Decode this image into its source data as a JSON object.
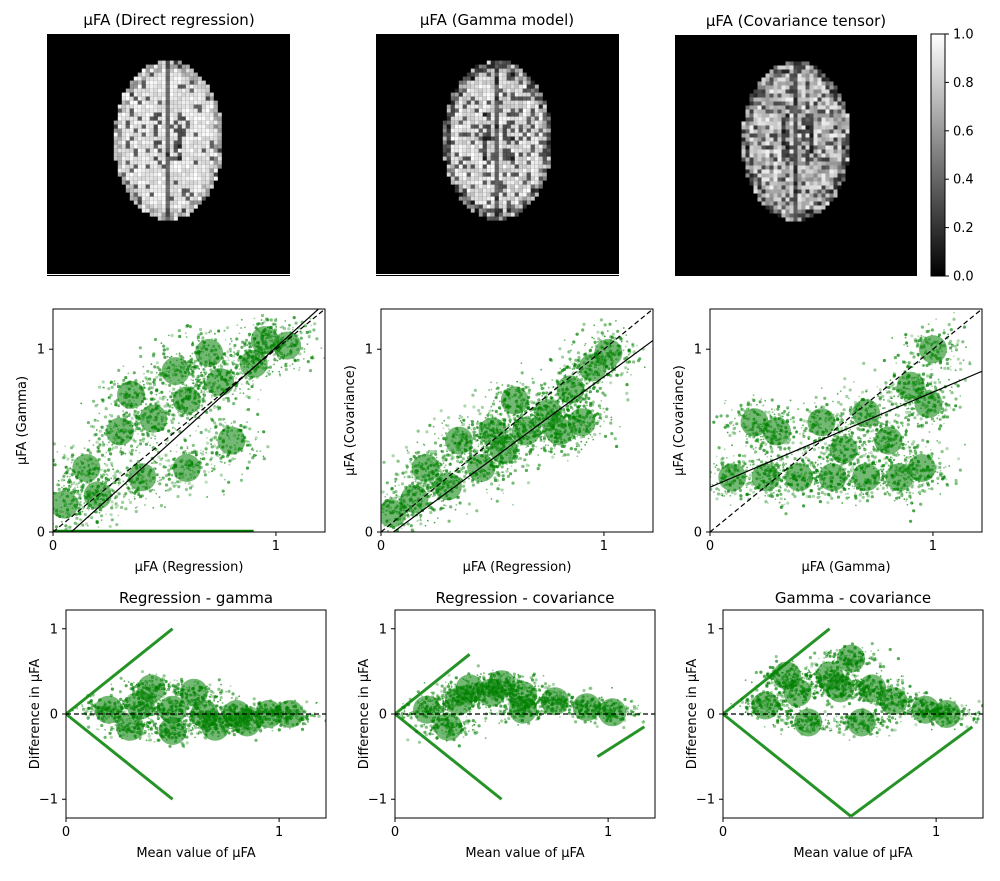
{
  "chart_data": [
    {
      "type": "image",
      "title": "μFA (Direct regression)",
      "image": {
        "kind": "brain",
        "style": "direct",
        "colormap": "gray",
        "range": [
          0,
          1
        ]
      }
    },
    {
      "type": "image",
      "title": "μFA (Gamma model)",
      "image": {
        "kind": "brain",
        "style": "gamma",
        "colormap": "gray",
        "range": [
          0,
          1
        ]
      }
    },
    {
      "type": "image",
      "title": "μFA (Covariance tensor)",
      "image": {
        "kind": "brain",
        "style": "covariance",
        "colormap": "gray",
        "range": [
          0,
          1
        ]
      }
    },
    {
      "type": "colorbar",
      "colormap": "gray",
      "range": [
        0,
        1
      ],
      "ticks": [
        0.0,
        0.2,
        0.4,
        0.6,
        0.8,
        1.0
      ],
      "tick_labels": [
        "0.0",
        "0.2",
        "0.4",
        "0.6",
        "0.8",
        "1.0"
      ]
    },
    {
      "type": "scatter",
      "title": "",
      "xlabel": "μFA (Regression)",
      "ylabel": "μFA (Gamma)",
      "xlim": [
        0,
        1.22
      ],
      "ylim": [
        0,
        1.22
      ],
      "xticks": [
        0,
        1
      ],
      "yticks": [
        0,
        1
      ],
      "point_color": "#008000",
      "identity_line": {
        "style": "dashed",
        "color": "#000000"
      },
      "fit_line": {
        "slope": 1.1,
        "intercept": -0.09,
        "color": "#000000"
      },
      "cloud": {
        "points": [
          [
            0.05,
            0.15
          ],
          [
            0.15,
            0.35
          ],
          [
            0.3,
            0.55
          ],
          [
            0.45,
            0.62
          ],
          [
            0.6,
            0.72
          ],
          [
            0.75,
            0.82
          ],
          [
            0.9,
            0.92
          ],
          [
            1.05,
            1.02
          ],
          [
            0.8,
            0.5
          ],
          [
            0.6,
            0.35
          ],
          [
            0.4,
            0.3
          ],
          [
            0.2,
            0.2
          ],
          [
            0.35,
            0.75
          ],
          [
            0.55,
            0.88
          ],
          [
            0.7,
            0.98
          ],
          [
            0.95,
            1.05
          ]
        ],
        "floor_row": {
          "y": 0.0,
          "x_range": [
            0,
            0.9
          ]
        }
      }
    },
    {
      "type": "scatter",
      "title": "",
      "xlabel": "μFA (Regression)",
      "ylabel": "μFA (Covariance)",
      "xlim": [
        0,
        1.22
      ],
      "ylim": [
        0,
        1.22
      ],
      "xticks": [
        0,
        1
      ],
      "yticks": [
        0,
        1
      ],
      "point_color": "#008000",
      "identity_line": {
        "style": "dashed",
        "color": "#000000"
      },
      "fit_line": {
        "slope": 0.9,
        "intercept": -0.05,
        "color": "#000000"
      },
      "cloud": {
        "points": [
          [
            0.05,
            0.1
          ],
          [
            0.15,
            0.18
          ],
          [
            0.3,
            0.25
          ],
          [
            0.45,
            0.35
          ],
          [
            0.55,
            0.45
          ],
          [
            0.65,
            0.55
          ],
          [
            0.75,
            0.65
          ],
          [
            0.85,
            0.78
          ],
          [
            0.95,
            0.9
          ],
          [
            1.02,
            0.98
          ],
          [
            0.2,
            0.35
          ],
          [
            0.35,
            0.5
          ],
          [
            0.5,
            0.55
          ],
          [
            0.6,
            0.72
          ],
          [
            0.8,
            0.55
          ],
          [
            0.9,
            0.6
          ]
        ],
        "floor_row": null
      }
    },
    {
      "type": "scatter",
      "title": "",
      "xlabel": "μFA (Gamma)",
      "ylabel": "μFA (Covariance)",
      "xlim": [
        0,
        1.22
      ],
      "ylim": [
        0,
        1.22
      ],
      "xticks": [
        0,
        1
      ],
      "yticks": [
        0,
        1
      ],
      "point_color": "#008000",
      "identity_line": {
        "style": "dashed",
        "color": "#000000"
      },
      "fit_line": {
        "slope": 0.52,
        "intercept": 0.245,
        "color": "#000000"
      },
      "cloud": {
        "points": [
          [
            0.1,
            0.3
          ],
          [
            0.25,
            0.3
          ],
          [
            0.4,
            0.3
          ],
          [
            0.55,
            0.3
          ],
          [
            0.7,
            0.3
          ],
          [
            0.85,
            0.3
          ],
          [
            0.95,
            0.35
          ],
          [
            0.3,
            0.55
          ],
          [
            0.5,
            0.6
          ],
          [
            0.7,
            0.65
          ],
          [
            0.9,
            0.8
          ],
          [
            1.0,
            1.0
          ],
          [
            0.2,
            0.6
          ],
          [
            0.6,
            0.45
          ],
          [
            0.8,
            0.5
          ],
          [
            0.98,
            0.7
          ]
        ],
        "floor_row": null
      }
    },
    {
      "type": "scatter",
      "title": "Regression - gamma",
      "xlabel": "Mean value of μFA",
      "ylabel": "Difference in μFA",
      "xlim": [
        0,
        1.22
      ],
      "ylim": [
        -1.22,
        1.22
      ],
      "xticks": [
        0,
        1
      ],
      "yticks": [
        -1,
        0,
        1
      ],
      "point_color": "#008000",
      "zero_line": {
        "style": "dashed",
        "color": "#000000"
      },
      "cloud": {
        "points": [
          [
            0.2,
            0.05
          ],
          [
            0.35,
            0.1
          ],
          [
            0.5,
            0.05
          ],
          [
            0.65,
            0.0
          ],
          [
            0.8,
            0.0
          ],
          [
            0.95,
            0.0
          ],
          [
            0.3,
            -0.15
          ],
          [
            0.5,
            -0.2
          ],
          [
            0.7,
            -0.15
          ],
          [
            0.4,
            0.3
          ],
          [
            0.6,
            0.25
          ],
          [
            0.85,
            -0.1
          ],
          [
            1.05,
            0.0
          ]
        ],
        "arms": [
          [
            [
              0,
              0
            ],
            [
              0.5,
              1.0
            ]
          ],
          [
            [
              0,
              0
            ],
            [
              0.5,
              -1.0
            ]
          ]
        ]
      }
    },
    {
      "type": "scatter",
      "title": "Regression - covariance",
      "xlabel": "Mean value of μFA",
      "ylabel": "Difference in μFA",
      "xlim": [
        0,
        1.22
      ],
      "ylim": [
        -1.22,
        1.22
      ],
      "xticks": [
        0,
        1
      ],
      "yticks": [
        -1,
        0,
        1
      ],
      "point_color": "#008000",
      "zero_line": {
        "style": "dashed",
        "color": "#000000"
      },
      "cloud": {
        "points": [
          [
            0.15,
            0.05
          ],
          [
            0.3,
            0.15
          ],
          [
            0.45,
            0.25
          ],
          [
            0.6,
            0.22
          ],
          [
            0.75,
            0.15
          ],
          [
            0.9,
            0.08
          ],
          [
            1.02,
            0.02
          ],
          [
            0.5,
            0.35
          ],
          [
            0.35,
            0.3
          ],
          [
            0.25,
            -0.15
          ],
          [
            0.6,
            0.05
          ]
        ],
        "arms": [
          [
            [
              0,
              0
            ],
            [
              0.35,
              0.7
            ]
          ],
          [
            [
              0,
              0
            ],
            [
              0.5,
              -1.0
            ]
          ],
          [
            [
              0.95,
              -0.5
            ],
            [
              1.17,
              -0.15
            ]
          ]
        ]
      }
    },
    {
      "type": "scatter",
      "title": "Gamma - covariance",
      "xlabel": "Mean value of μFA",
      "ylabel": "Difference in μFA",
      "xlim": [
        0,
        1.22
      ],
      "ylim": [
        -1.22,
        1.22
      ],
      "xticks": [
        0,
        1
      ],
      "yticks": [
        -1,
        0,
        1
      ],
      "point_color": "#008000",
      "zero_line": {
        "style": "dashed",
        "color": "#000000"
      },
      "cloud": {
        "points": [
          [
            0.2,
            0.1
          ],
          [
            0.35,
            0.25
          ],
          [
            0.5,
            0.45
          ],
          [
            0.6,
            0.65
          ],
          [
            0.55,
            0.3
          ],
          [
            0.7,
            0.3
          ],
          [
            0.8,
            0.15
          ],
          [
            0.95,
            0.05
          ],
          [
            1.05,
            0.0
          ],
          [
            0.4,
            -0.1
          ],
          [
            0.65,
            -0.1
          ],
          [
            0.3,
            0.45
          ]
        ],
        "arms": [
          [
            [
              0,
              0
            ],
            [
              0.5,
              1.0
            ]
          ],
          [
            [
              0,
              0
            ],
            [
              0.6,
              -1.2
            ]
          ],
          [
            [
              0.6,
              -1.2
            ],
            [
              1.17,
              -0.15
            ]
          ]
        ]
      }
    }
  ]
}
